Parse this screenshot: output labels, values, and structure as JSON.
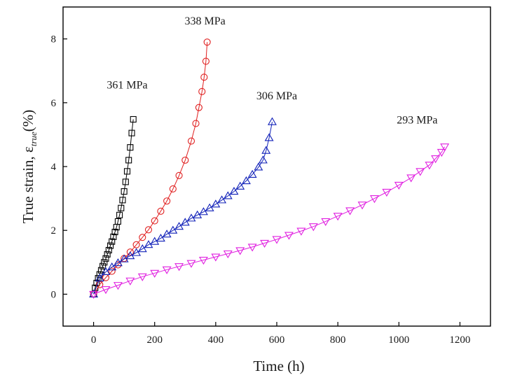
{
  "chart_data": {
    "type": "scatter",
    "xlabel": "Time (h)",
    "ylabel": {
      "main": "True strain, ε",
      "subscript": "true",
      "unit": "(%)"
    },
    "xlim": [
      -100,
      1300
    ],
    "ylim": [
      -1,
      9
    ],
    "x_ticks": [
      0,
      200,
      400,
      600,
      800,
      1000,
      1200
    ],
    "y_ticks": [
      0,
      2,
      4,
      6,
      8
    ],
    "grid": false,
    "legend": "none",
    "series": [
      {
        "name": "361 MPa",
        "color": "#000000",
        "marker": "square",
        "x": [
          0,
          5,
          10,
          15,
          20,
          25,
          30,
          35,
          40,
          45,
          50,
          55,
          60,
          65,
          70,
          75,
          80,
          85,
          90,
          95,
          100,
          105,
          110,
          115,
          120,
          125,
          130
        ],
        "y": [
          0.0,
          0.2,
          0.35,
          0.5,
          0.62,
          0.75,
          0.88,
          1.0,
          1.12,
          1.25,
          1.38,
          1.52,
          1.65,
          1.8,
          1.95,
          2.1,
          2.28,
          2.48,
          2.7,
          2.95,
          3.22,
          3.52,
          3.85,
          4.2,
          4.6,
          5.05,
          5.48
        ]
      },
      {
        "name": "338 MPa",
        "color": "#e02020",
        "marker": "circle",
        "x": [
          0,
          20,
          40,
          60,
          80,
          100,
          120,
          140,
          160,
          180,
          200,
          220,
          240,
          260,
          280,
          300,
          320,
          335,
          345,
          355,
          362,
          368,
          372
        ],
        "y": [
          0.0,
          0.3,
          0.52,
          0.72,
          0.92,
          1.12,
          1.32,
          1.55,
          1.78,
          2.02,
          2.3,
          2.6,
          2.92,
          3.3,
          3.72,
          4.2,
          4.8,
          5.35,
          5.85,
          6.35,
          6.8,
          7.3,
          7.9
        ]
      },
      {
        "name": "306 MPa",
        "color": "#1020b8",
        "marker": "triangle-up",
        "x": [
          0,
          20,
          40,
          60,
          80,
          100,
          120,
          140,
          160,
          180,
          200,
          220,
          240,
          260,
          280,
          300,
          320,
          340,
          360,
          380,
          400,
          420,
          440,
          460,
          480,
          500,
          520,
          540,
          555,
          565,
          575,
          585
        ],
        "y": [
          0.0,
          0.5,
          0.7,
          0.85,
          0.98,
          1.1,
          1.2,
          1.3,
          1.42,
          1.55,
          1.65,
          1.75,
          1.88,
          2.0,
          2.12,
          2.25,
          2.38,
          2.48,
          2.58,
          2.7,
          2.82,
          2.95,
          3.08,
          3.22,
          3.38,
          3.55,
          3.75,
          3.98,
          4.2,
          4.5,
          4.9,
          5.4
        ]
      },
      {
        "name": "293 MPa",
        "color": "#e020e0",
        "marker": "triangle-down",
        "x": [
          0,
          40,
          80,
          120,
          160,
          200,
          240,
          280,
          320,
          360,
          400,
          440,
          480,
          520,
          560,
          600,
          640,
          680,
          720,
          760,
          800,
          840,
          880,
          920,
          960,
          1000,
          1040,
          1070,
          1100,
          1120,
          1140,
          1150
        ],
        "y": [
          0.0,
          0.15,
          0.28,
          0.42,
          0.55,
          0.66,
          0.77,
          0.87,
          0.97,
          1.07,
          1.17,
          1.27,
          1.37,
          1.48,
          1.6,
          1.72,
          1.85,
          1.98,
          2.12,
          2.28,
          2.45,
          2.62,
          2.8,
          3.0,
          3.2,
          3.42,
          3.65,
          3.85,
          4.05,
          4.25,
          4.45,
          4.62
        ]
      }
    ],
    "annotations": [
      {
        "text": "361 MPa",
        "x": 110,
        "y": 6.45
      },
      {
        "text": "338 MPa",
        "x": 365,
        "y": 8.45
      },
      {
        "text": "306 MPa",
        "x": 600,
        "y": 6.1
      },
      {
        "text": "293 MPa",
        "x": 1060,
        "y": 5.35
      }
    ]
  }
}
